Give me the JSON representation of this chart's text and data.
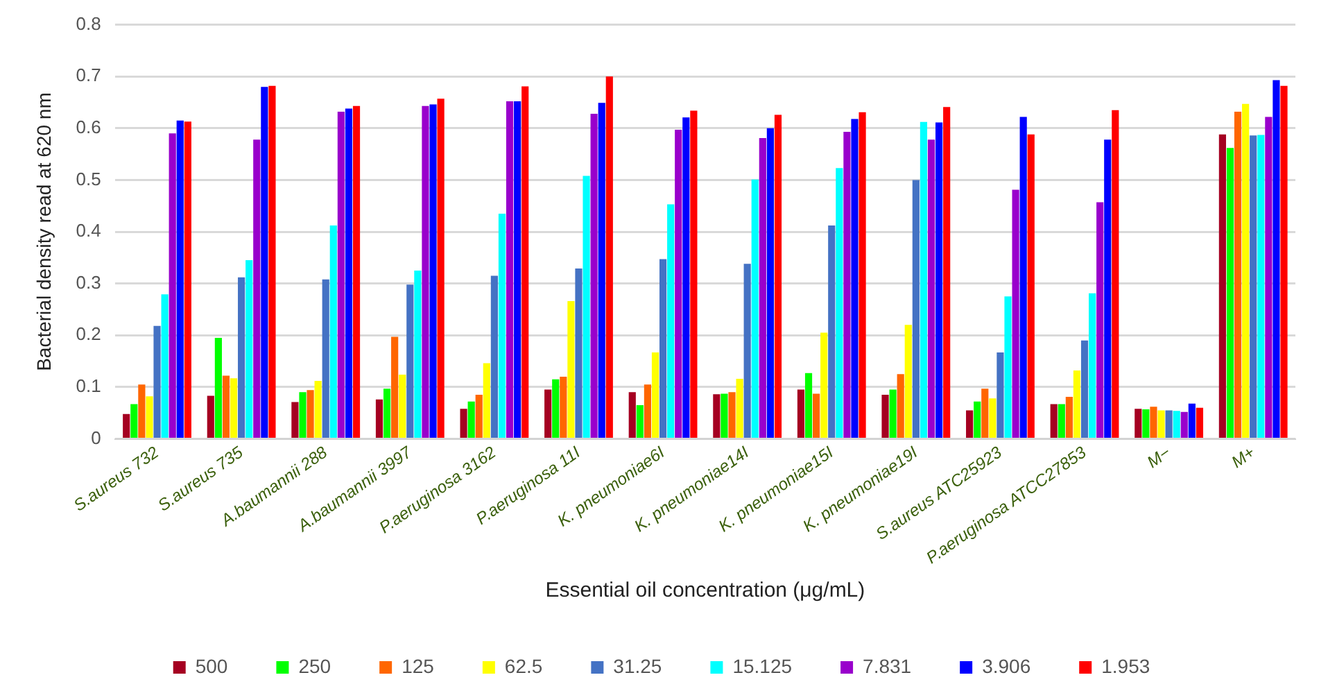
{
  "chart_data": {
    "type": "bar",
    "xlabel": "Essential oil concentration (μg/mL)",
    "ylabel": "Bacterial density read at 620 nm",
    "categories": [
      "S.aureus 732",
      "S.aureus 735",
      "A.baumannii 288",
      "A.baumannii 3997",
      "P.aeruginosa 3162",
      "P.aeruginosa 11I",
      "K. pneumoniae6I",
      "K. pneumoniae14I",
      "K. pneumoniae15I",
      "K. pneumoniae19I",
      "S.aureus ATC25923",
      "P.aeruginosa ATCC27853",
      "M−",
      "M+"
    ],
    "series": [
      {
        "name": "500",
        "color": "#a50021",
        "values": [
          0.048,
          0.083,
          0.071,
          0.076,
          0.058,
          0.095,
          0.09,
          0.086,
          0.095,
          0.085,
          0.055,
          0.067,
          0.058,
          0.588
        ]
      },
      {
        "name": "250",
        "color": "#00ff00",
        "values": [
          0.067,
          0.195,
          0.09,
          0.097,
          0.072,
          0.115,
          0.065,
          0.087,
          0.127,
          0.095,
          0.072,
          0.067,
          0.057,
          0.562
        ]
      },
      {
        "name": "125",
        "color": "#ff6600",
        "values": [
          0.105,
          0.122,
          0.094,
          0.197,
          0.085,
          0.12,
          0.105,
          0.09,
          0.087,
          0.125,
          0.097,
          0.081,
          0.062,
          0.632
        ]
      },
      {
        "name": "62.5",
        "color": "#ffff00",
        "values": [
          0.082,
          0.117,
          0.112,
          0.124,
          0.146,
          0.266,
          0.167,
          0.116,
          0.205,
          0.22,
          0.078,
          0.132,
          0.055,
          0.647
        ]
      },
      {
        "name": "31.25",
        "color": "#4472c4",
        "values": [
          0.218,
          0.312,
          0.308,
          0.298,
          0.315,
          0.329,
          0.347,
          0.338,
          0.412,
          0.5,
          0.167,
          0.19,
          0.055,
          0.586
        ]
      },
      {
        "name": "15.125",
        "color": "#00ffff",
        "values": [
          0.279,
          0.345,
          0.412,
          0.325,
          0.435,
          0.508,
          0.453,
          0.501,
          0.523,
          0.612,
          0.275,
          0.281,
          0.054,
          0.587
        ]
      },
      {
        "name": "7.831",
        "color": "#9900cc",
        "values": [
          0.59,
          0.578,
          0.632,
          0.643,
          0.652,
          0.628,
          0.597,
          0.581,
          0.593,
          0.578,
          0.481,
          0.457,
          0.052,
          0.622
        ]
      },
      {
        "name": "3.906",
        "color": "#0000ff",
        "values": [
          0.615,
          0.68,
          0.638,
          0.646,
          0.652,
          0.649,
          0.621,
          0.6,
          0.618,
          0.611,
          0.622,
          0.578,
          0.068,
          0.693
        ]
      },
      {
        "name": "1.953",
        "color": "#ff0000",
        "values": [
          0.613,
          0.682,
          0.643,
          0.657,
          0.681,
          0.7,
          0.634,
          0.626,
          0.631,
          0.641,
          0.588,
          0.635,
          0.06,
          0.682
        ]
      }
    ],
    "ylim": [
      0,
      0.8
    ],
    "yticks": [
      0,
      0.1,
      0.2,
      0.3,
      0.4,
      0.5,
      0.6,
      0.7,
      0.8
    ],
    "grid": "y",
    "legend": "bottom"
  }
}
